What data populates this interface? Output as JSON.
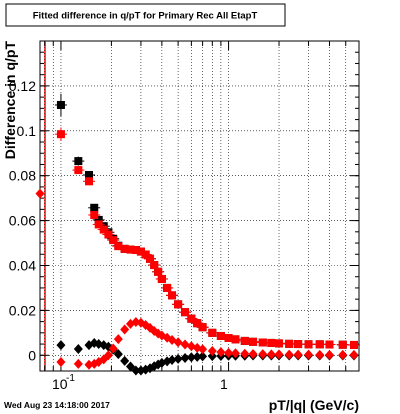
{
  "chart_data": {
    "type": "scatter",
    "title": "Fitted difference in q/pT for Primary Rec All EtapT",
    "xlabel": "pT/|q| (GeV/c)",
    "ylabel": "Difference in q/pT",
    "xscale": "log",
    "xlim": [
      0.075,
      6.0
    ],
    "ylim": [
      -0.007,
      0.14
    ],
    "grid": true,
    "x_tick_labels": [
      "10",
      "-1",
      "1"
    ],
    "y_tick_labels": [
      "0",
      "0.02",
      "0.04",
      "0.06",
      "0.08",
      "0.1",
      "0.12"
    ],
    "y_ticks": [
      0,
      0.02,
      0.04,
      0.06,
      0.08,
      0.1,
      0.12
    ],
    "date_stamp": "Wed Aug 23 14:18:00 2017",
    "series": [
      {
        "marker": "square",
        "color": "#000000",
        "x": [
          0.1,
          0.127,
          0.147,
          0.158,
          0.168,
          0.18,
          0.192,
          0.205,
          0.22,
          0.24,
          0.26,
          0.28,
          0.3,
          0.32,
          0.34,
          0.36,
          0.38,
          0.4,
          0.43,
          0.46,
          0.5,
          0.55,
          0.6,
          0.65,
          0.7,
          0.8,
          0.9,
          1.0,
          1.1,
          1.25,
          1.4,
          1.6,
          1.8,
          2.0,
          2.3,
          2.6,
          3.0,
          3.5,
          4.0,
          4.8,
          5.6
        ],
        "y": [
          0.1115,
          0.0865,
          0.0803,
          0.0657,
          0.0603,
          0.0575,
          0.0548,
          0.0519,
          0.0488,
          0.0474,
          0.0471,
          0.0469,
          0.0462,
          0.0449,
          0.043,
          0.0402,
          0.0372,
          0.034,
          0.03,
          0.0267,
          0.0227,
          0.0192,
          0.0163,
          0.0143,
          0.0125,
          0.01,
          0.0086,
          0.0077,
          0.0071,
          0.0064,
          0.006,
          0.0057,
          0.0055,
          0.0053,
          0.0051,
          0.005,
          0.0049,
          0.0049,
          0.0048,
          0.0047,
          0.0046
        ],
        "yerr": [
          0.005,
          0.002,
          0.0015,
          0.001,
          0.001,
          0.0008,
          0.0007,
          0.0006,
          0.0005,
          0.0004,
          0.0004,
          0.0004,
          0.0003,
          0.0003,
          0.0003,
          0.0003,
          0.0003,
          0.0002,
          0.0002,
          0.0002,
          0.0002,
          0.0002,
          0.0002,
          0.0002,
          0.0002,
          0.0002,
          0.0002,
          0.0002,
          0.0002,
          0.0002,
          0.0002,
          0.0002,
          0.0002,
          0.0002,
          0.0002,
          0.0002,
          0.0002,
          0.0002,
          0.0002,
          0.0002,
          0.0002
        ]
      },
      {
        "marker": "square",
        "color": "#ff0000",
        "x": [
          0.1,
          0.127,
          0.147,
          0.158,
          0.168,
          0.18,
          0.192,
          0.205,
          0.22,
          0.24,
          0.26,
          0.28,
          0.3,
          0.32,
          0.34,
          0.36,
          0.38,
          0.4,
          0.43,
          0.46,
          0.5,
          0.55,
          0.6,
          0.65,
          0.7,
          0.8,
          0.9,
          1.0,
          1.1,
          1.25,
          1.4,
          1.6,
          1.8,
          2.0,
          2.3,
          2.6,
          3.0,
          3.5,
          4.0,
          4.8,
          5.6
        ],
        "y": [
          0.0985,
          0.0825,
          0.0775,
          0.0625,
          0.0583,
          0.056,
          0.0538,
          0.0513,
          0.0486,
          0.0474,
          0.0471,
          0.0469,
          0.0462,
          0.0449,
          0.043,
          0.0402,
          0.0372,
          0.034,
          0.03,
          0.0267,
          0.0227,
          0.0192,
          0.0163,
          0.0143,
          0.0125,
          0.01,
          0.0086,
          0.0077,
          0.0071,
          0.0064,
          0.006,
          0.0057,
          0.0055,
          0.0053,
          0.0051,
          0.005,
          0.0049,
          0.0049,
          0.0048,
          0.0047,
          0.0046
        ],
        "yerr": [
          0.003,
          0.0015,
          0.0012,
          0.001,
          0.0008,
          0.0007,
          0.0006,
          0.0005,
          0.0005,
          0.0004,
          0.0004,
          0.0004,
          0.0003,
          0.0003,
          0.0003,
          0.0003,
          0.0003,
          0.0002,
          0.0002,
          0.0002,
          0.0002,
          0.0002,
          0.0002,
          0.0002,
          0.0002,
          0.0002,
          0.0002,
          0.0002,
          0.0002,
          0.0002,
          0.0002,
          0.0002,
          0.0002,
          0.0002,
          0.0002,
          0.0002,
          0.0002,
          0.0002,
          0.0002,
          0.0002,
          0.0002
        ]
      },
      {
        "marker": "diamond",
        "color": "#000000",
        "x": [
          0.1,
          0.127,
          0.147,
          0.158,
          0.168,
          0.18,
          0.192,
          0.205,
          0.22,
          0.24,
          0.26,
          0.28,
          0.3,
          0.32,
          0.34,
          0.36,
          0.38,
          0.4,
          0.43,
          0.46,
          0.5,
          0.55,
          0.6,
          0.65,
          0.7,
          0.8,
          0.9,
          1.0,
          1.1,
          1.25,
          1.4,
          1.6,
          1.8,
          2.0,
          2.3,
          2.6,
          3.0,
          3.5,
          4.0,
          4.8,
          5.6
        ],
        "y": [
          0.0045,
          0.0028,
          0.0045,
          0.0055,
          0.005,
          0.0045,
          0.0038,
          0.0025,
          0.0005,
          -0.0025,
          -0.005,
          -0.0068,
          -0.0068,
          -0.0064,
          -0.0058,
          -0.0049,
          -0.0041,
          -0.0034,
          -0.0027,
          -0.0021,
          -0.0016,
          -0.0012,
          -0.0009,
          -0.0007,
          -0.0005,
          -0.0004,
          -0.0003,
          -0.0002,
          -0.0002,
          -0.0002,
          -0.0001,
          -0.0001,
          -0.0001,
          -0.0001,
          -0.0001,
          -0.0001,
          -0.0001,
          -0.0001,
          -0.0001,
          -0.0001,
          -0.0001
        ],
        "yerr": []
      },
      {
        "marker": "diamond",
        "color": "#ff0000",
        "x": [
          0.075,
          0.1,
          0.127,
          0.147,
          0.158,
          0.168,
          0.18,
          0.192,
          0.205,
          0.22,
          0.24,
          0.26,
          0.28,
          0.3,
          0.32,
          0.34,
          0.36,
          0.38,
          0.4,
          0.43,
          0.46,
          0.5,
          0.55,
          0.6,
          0.65,
          0.7,
          0.8,
          0.9,
          1.0,
          1.1,
          1.25,
          1.4,
          1.6,
          1.8,
          2.0,
          2.3,
          2.6,
          3.0,
          3.5,
          4.0,
          4.8,
          5.6
        ],
        "y": [
          0.072,
          -0.003,
          -0.0038,
          -0.0042,
          -0.0038,
          -0.003,
          -0.0018,
          0.0,
          0.003,
          0.0072,
          0.0115,
          0.014,
          0.0148,
          0.0145,
          0.0135,
          0.0122,
          0.0108,
          0.0097,
          0.0088,
          0.0078,
          0.0068,
          0.0058,
          0.0048,
          0.004,
          0.0033,
          0.0027,
          0.0019,
          0.0014,
          0.0011,
          0.0009,
          0.0007,
          0.0006,
          0.0005,
          0.0004,
          0.0004,
          0.0003,
          0.0003,
          0.0003,
          0.0002,
          0.0002,
          0.0002,
          0.0002
        ],
        "yerr": []
      }
    ]
  }
}
